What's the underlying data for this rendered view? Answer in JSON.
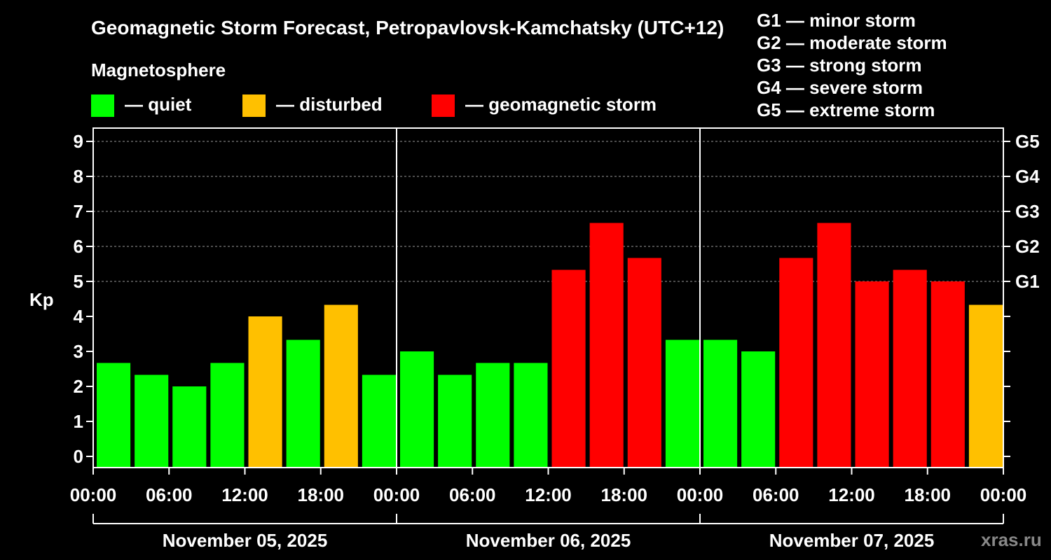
{
  "chart_data": {
    "type": "bar",
    "title": "Geomagnetic Storm Forecast, Petropavlovsk-Kamchatsky (UTC+12)",
    "ylabel": "Kp",
    "ylim": [
      0,
      9
    ],
    "y_ticks": [
      "0",
      "1",
      "2",
      "3",
      "4",
      "5",
      "6",
      "7",
      "8",
      "9"
    ],
    "g_ticks": [
      {
        "kp": 5,
        "label": "G1"
      },
      {
        "kp": 6,
        "label": "G2"
      },
      {
        "kp": 7,
        "label": "G3"
      },
      {
        "kp": 8,
        "label": "G4"
      },
      {
        "kp": 9,
        "label": "G5"
      }
    ],
    "x_ticks": [
      "00:00",
      "06:00",
      "12:00",
      "18:00",
      "00:00",
      "06:00",
      "12:00",
      "18:00",
      "00:00",
      "06:00",
      "12:00",
      "18:00",
      "00:00"
    ],
    "days": [
      "November 05, 2025",
      "November 06, 2025",
      "November 07, 2025"
    ],
    "values": [
      2.67,
      2.33,
      2.0,
      2.67,
      4.0,
      3.33,
      4.33,
      2.33,
      3.0,
      2.33,
      2.67,
      2.67,
      5.33,
      6.67,
      5.67,
      3.33,
      3.33,
      3.0,
      5.67,
      6.67,
      5.0,
      5.33,
      5.0,
      4.33
    ],
    "status": [
      "quiet",
      "quiet",
      "quiet",
      "quiet",
      "disturbed",
      "quiet",
      "disturbed",
      "quiet",
      "quiet",
      "quiet",
      "quiet",
      "quiet",
      "storm",
      "storm",
      "storm",
      "quiet",
      "quiet",
      "quiet",
      "storm",
      "storm",
      "storm",
      "storm",
      "storm",
      "disturbed"
    ],
    "grid": "dashed horizontal",
    "colors": {
      "quiet": "#00ff00",
      "disturbed": "#ffc000",
      "storm": "#ff0000"
    }
  },
  "legend": {
    "heading": "Magnetosphere",
    "items": [
      {
        "key": "quiet",
        "label": "— quiet"
      },
      {
        "key": "disturbed",
        "label": "— disturbed"
      },
      {
        "key": "storm",
        "label": "— geomagnetic storm"
      }
    ]
  },
  "storm_scale": [
    "G1 — minor storm",
    "G2 — moderate storm",
    "G3 — strong storm",
    "G4 — severe storm",
    "G5 — extreme storm"
  ],
  "watermark": "xras.ru"
}
